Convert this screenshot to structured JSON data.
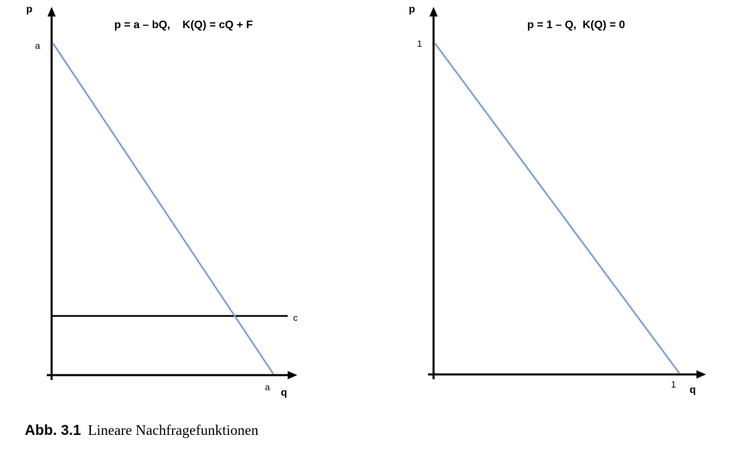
{
  "chart_data": [
    {
      "type": "line",
      "title": "p = a – bQ,    K(Q) = cQ + F",
      "ylabel": "p",
      "xlabel": "q",
      "y_intercept_label": "a",
      "x_intercept_label": "a",
      "hline_label": "c",
      "series": [
        {
          "x": [
            0,
            1
          ],
          "values": [
            1,
            0
          ]
        }
      ],
      "hline_value": 0.175,
      "xlim": [
        0,
        1
      ],
      "ylim": [
        0,
        1
      ],
      "colors": {
        "demand": "#7ea1d4",
        "hline": "#000000"
      }
    },
    {
      "type": "line",
      "title": "p = 1 – Q,  K(Q) = 0",
      "ylabel": "p",
      "xlabel": "q",
      "y_intercept_label": "1",
      "x_intercept_label": "1",
      "series": [
        {
          "x": [
            0,
            1
          ],
          "values": [
            1,
            0
          ]
        }
      ],
      "xlim": [
        0,
        1
      ],
      "ylim": [
        0,
        1
      ],
      "colors": {
        "demand": "#7ea1d4"
      }
    }
  ],
  "caption": {
    "number": "Abb. 3.1",
    "text": "Lineare Nachfragefunktionen"
  }
}
